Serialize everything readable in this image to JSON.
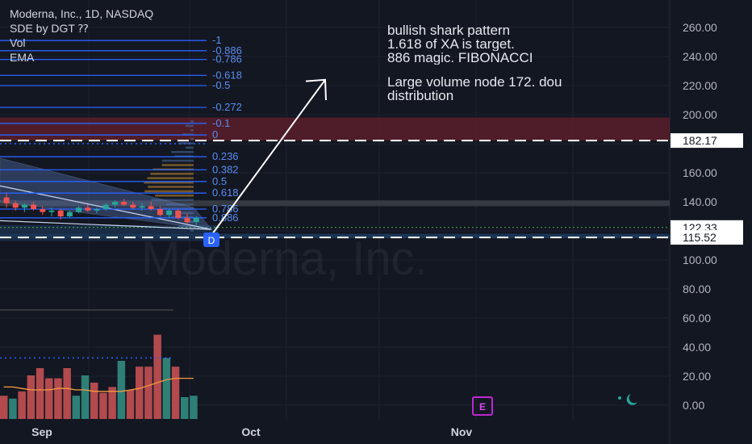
{
  "legend": {
    "title": "Moderna, Inc., 1D, NASDAQ",
    "indicator_sde": "SDE by DGT ⁇",
    "indicator_vol": "Vol",
    "indicator_ema": "EMA"
  },
  "annotations": {
    "line1": "bullish shark pattern",
    "line2": "1.618 of XA is target.",
    "line3": "886 magic. FIBONACCI",
    "line4": "Large volume node 172. dou",
    "line5": "distribution"
  },
  "watermark": {
    "text": "Moderna, Inc."
  },
  "calendar_marker": "E",
  "colors": {
    "background": "#131722",
    "grid": "#1e2230",
    "fib_line": "#2962ff",
    "fib_label": "#5b8def",
    "candle_up": "#26a69a",
    "candle_down": "#ef5350",
    "ema": "#f59b3c",
    "resistance_zone": "#5a1e2b",
    "arrow": "#ffffff",
    "price_label_bg": "#ffffff"
  },
  "chart_data": {
    "type": "candlestick",
    "price_axis": {
      "ticks": [
        "0.00",
        "20.00",
        "40.00",
        "60.00",
        "80.00",
        "100.00",
        "120.00",
        "140.00",
        "160.00",
        "180.00",
        "200.00",
        "220.00",
        "240.00",
        "260.00"
      ]
    },
    "time_axis": {
      "ticks": [
        "Sep",
        "Oct",
        "Nov"
      ]
    },
    "price_labels": [
      "182.17",
      "122.33",
      "115.52"
    ],
    "fib_levels": [
      {
        "label": "-1",
        "price": 251
      },
      {
        "label": "-0.886",
        "price": 244
      },
      {
        "label": "-0.786",
        "price": 238
      },
      {
        "label": "-0.618",
        "price": 227
      },
      {
        "label": "-0.5",
        "price": 220
      },
      {
        "label": "-0.272",
        "price": 205
      },
      {
        "label": "-0.1",
        "price": 194
      },
      {
        "label": "0",
        "price": 186
      },
      {
        "label": "0.236",
        "price": 171
      },
      {
        "label": "0.382",
        "price": 162
      },
      {
        "label": "0.5",
        "price": 154
      },
      {
        "label": "0.618",
        "price": 146
      },
      {
        "label": "0.786",
        "price": 135
      },
      {
        "label": "0.886",
        "price": 129
      }
    ],
    "pattern_point": "D",
    "target_zone": {
      "low": 182.17,
      "high": 198
    },
    "candles": [
      {
        "o": 143,
        "h": 146,
        "l": 136,
        "c": 139
      },
      {
        "o": 139,
        "h": 141,
        "l": 134,
        "c": 136
      },
      {
        "o": 136,
        "h": 139,
        "l": 133,
        "c": 138
      },
      {
        "o": 138,
        "h": 140,
        "l": 134,
        "c": 135
      },
      {
        "o": 135,
        "h": 137,
        "l": 131,
        "c": 133
      },
      {
        "o": 133,
        "h": 136,
        "l": 130,
        "c": 134
      },
      {
        "o": 134,
        "h": 135,
        "l": 128,
        "c": 130
      },
      {
        "o": 130,
        "h": 134,
        "l": 129,
        "c": 133
      },
      {
        "o": 133,
        "h": 137,
        "l": 132,
        "c": 136
      },
      {
        "o": 136,
        "h": 138,
        "l": 133,
        "c": 134
      },
      {
        "o": 134,
        "h": 136,
        "l": 132,
        "c": 135
      },
      {
        "o": 135,
        "h": 139,
        "l": 134,
        "c": 138
      },
      {
        "o": 138,
        "h": 141,
        "l": 136,
        "c": 140
      },
      {
        "o": 140,
        "h": 142,
        "l": 137,
        "c": 138
      },
      {
        "o": 138,
        "h": 140,
        "l": 135,
        "c": 136
      },
      {
        "o": 136,
        "h": 139,
        "l": 134,
        "c": 137
      },
      {
        "o": 137,
        "h": 140,
        "l": 134,
        "c": 135
      },
      {
        "o": 135,
        "h": 137,
        "l": 130,
        "c": 131
      },
      {
        "o": 131,
        "h": 135,
        "l": 129,
        "c": 134
      },
      {
        "o": 134,
        "h": 135,
        "l": 128,
        "c": 129
      },
      {
        "o": 129,
        "h": 132,
        "l": 125,
        "c": 126
      },
      {
        "o": 126,
        "h": 130,
        "l": 124,
        "c": 129
      }
    ],
    "volume_bars": [
      {
        "v": 16,
        "up": false
      },
      {
        "v": 14,
        "up": true
      },
      {
        "v": 19,
        "up": false
      },
      {
        "v": 30,
        "up": false
      },
      {
        "v": 35,
        "up": false
      },
      {
        "v": 28,
        "up": false
      },
      {
        "v": 28,
        "up": false
      },
      {
        "v": 35,
        "up": false
      },
      {
        "v": 16,
        "up": true
      },
      {
        "v": 30,
        "up": true
      },
      {
        "v": 25,
        "up": false
      },
      {
        "v": 18,
        "up": false
      },
      {
        "v": 22,
        "up": false
      },
      {
        "v": 40,
        "up": true
      },
      {
        "v": 20,
        "up": false
      },
      {
        "v": 36,
        "up": false
      },
      {
        "v": 36,
        "up": false
      },
      {
        "v": 58,
        "up": false
      },
      {
        "v": 42,
        "up": true
      },
      {
        "v": 36,
        "up": false
      },
      {
        "v": 15,
        "up": true
      },
      {
        "v": 16,
        "up": true
      }
    ],
    "ema_volume": [
      22,
      22,
      21,
      20,
      20,
      20,
      21,
      21,
      20,
      20,
      19,
      19,
      19,
      19,
      20,
      21,
      23,
      25,
      27,
      28,
      28,
      28
    ]
  }
}
